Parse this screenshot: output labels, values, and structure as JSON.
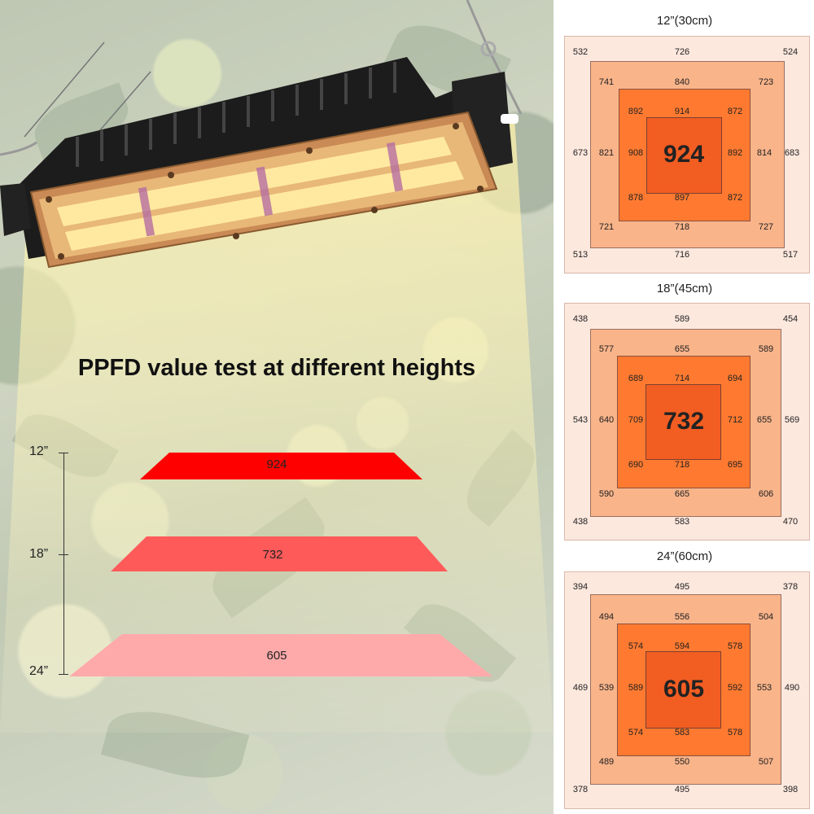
{
  "headline": "PPFD value test at different heights",
  "height_labels": [
    "12”",
    "18”",
    "24”"
  ],
  "bars": [
    {
      "value": "924",
      "color": "#ff0000"
    },
    {
      "value": "732",
      "color": "#ff5a5a"
    },
    {
      "value": "605",
      "color": "#ffaaaa"
    }
  ],
  "grids": [
    {
      "title": "12”(30cm)",
      "center": "924",
      "outer": {
        "tl": "532",
        "tc": "726",
        "tr": "524",
        "ml": "673",
        "mr": "683",
        "bl": "513",
        "bc": "716",
        "br": "517"
      },
      "middle": {
        "tl": "741",
        "tc": "840",
        "tr": "723",
        "ml": "821",
        "mr": "814",
        "bl": "721",
        "bc": "718",
        "br": "727"
      },
      "inner": {
        "tl": "892",
        "tc": "914",
        "tr": "872",
        "ml": "908",
        "mr": "892",
        "bl": "878",
        "bc": "897",
        "br": "872"
      }
    },
    {
      "title": "18”(45cm)",
      "center": "732",
      "outer": {
        "tl": "438",
        "tc": "589",
        "tr": "454",
        "ml": "543",
        "mr": "569",
        "bl": "438",
        "bc": "583",
        "br": "470"
      },
      "middle": {
        "tl": "577",
        "tc": "655",
        "tr": "589",
        "ml": "640",
        "mr": "655",
        "bl": "590",
        "bc": "665",
        "br": "606"
      },
      "inner": {
        "tl": "689",
        "tc": "714",
        "tr": "694",
        "ml": "709",
        "mr": "712",
        "bl": "690",
        "bc": "718",
        "br": "695"
      }
    },
    {
      "title": "24”(60cm)",
      "center": "605",
      "outer": {
        "tl": "394",
        "tc": "495",
        "tr": "378",
        "ml": "469",
        "mr": "490",
        "bl": "378",
        "bc": "495",
        "br": "398"
      },
      "middle": {
        "tl": "494",
        "tc": "556",
        "tr": "504",
        "ml": "539",
        "mr": "553",
        "bl": "489",
        "bc": "550",
        "br": "507"
      },
      "inner": {
        "tl": "574",
        "tc": "594",
        "tr": "578",
        "ml": "589",
        "mr": "592",
        "bl": "574",
        "bc": "583",
        "br": "578"
      }
    }
  ]
}
